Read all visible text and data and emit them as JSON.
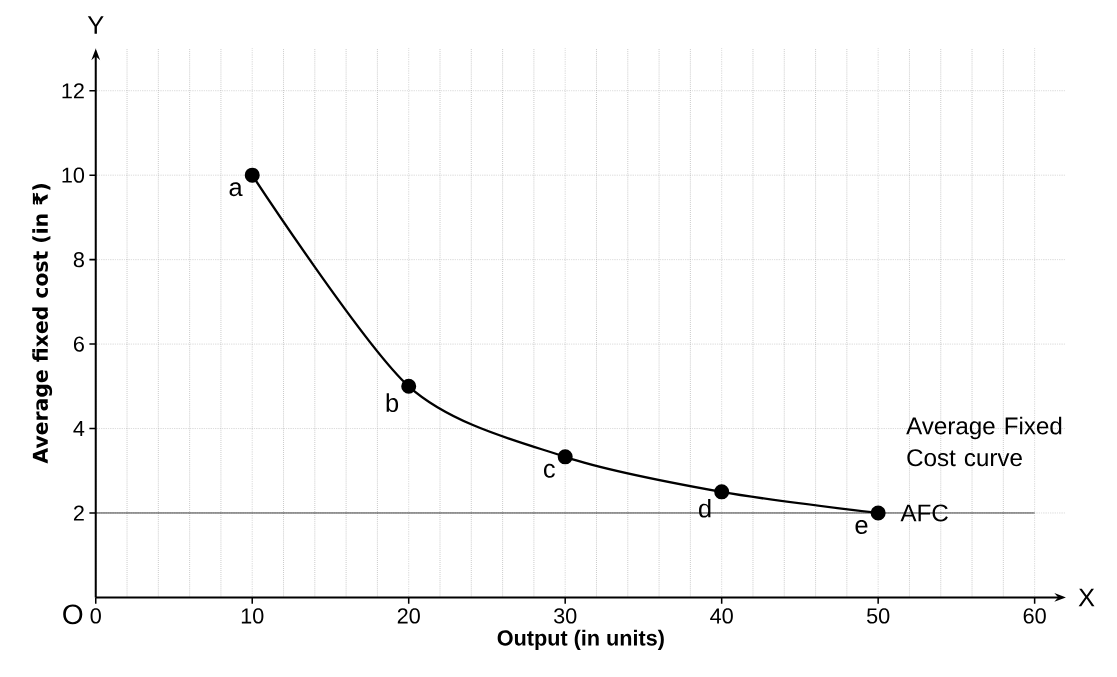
{
  "chart_data": {
    "type": "line",
    "xlabel": "Output (in units)",
    "ylabel": "Average fixed cost (in ₹)",
    "x": [
      10,
      20,
      30,
      40,
      50
    ],
    "series": [
      {
        "name": "AFC",
        "color": "#000000",
        "values": [
          10,
          5,
          3.33,
          2.5,
          2
        ]
      }
    ],
    "xlim": [
      0,
      62
    ],
    "ylim": [
      0,
      13
    ],
    "xticks": [
      0,
      10,
      20,
      30,
      40,
      50,
      60
    ],
    "yticks": [
      2,
      4,
      6,
      8,
      10,
      12
    ],
    "grid": true,
    "marker": "circle",
    "line_style": "solid",
    "ref_lines": [
      {
        "axis": "y",
        "value": 2
      }
    ],
    "annotations": [
      {
        "text": "a",
        "x": 10,
        "y": 10
      },
      {
        "text": "b",
        "x": 20,
        "y": 5
      },
      {
        "text": "c",
        "x": 30,
        "y": 3.33
      },
      {
        "text": "d",
        "x": 40,
        "y": 2.5
      },
      {
        "text": "e",
        "x": 50,
        "y": 2
      },
      "O",
      "X",
      "Y",
      "Average Fixed Cost curve"
    ]
  }
}
